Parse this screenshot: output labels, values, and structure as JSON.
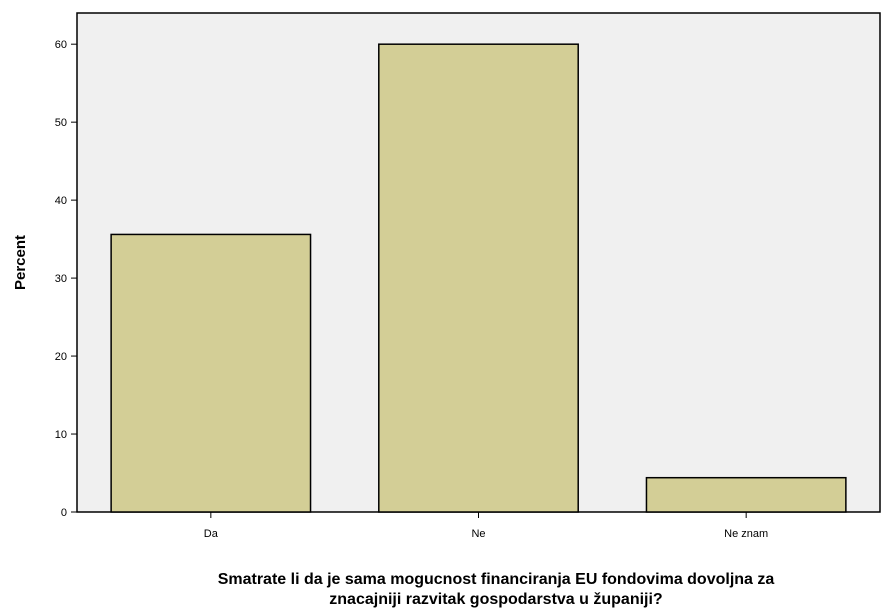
{
  "chart_data": {
    "type": "bar",
    "title": "",
    "categories": [
      "Da",
      "Ne",
      "Ne znam"
    ],
    "values": [
      35.6,
      60.0,
      4.4
    ],
    "xlabel_lines": [
      "Smatrate li da je sama mogucnost financiranja EU fondovima dovoljna za",
      "znacajniji razvitak gospodarstva u županiji?"
    ],
    "ylabel": "Percent",
    "ylim": [
      0,
      64
    ],
    "yticks": [
      0,
      10,
      20,
      30,
      40,
      50,
      60
    ],
    "grid": false,
    "legend": "none",
    "colors": {
      "plot_background": "#f0f0f0",
      "bar_fill": "#d3ce96",
      "bar_stroke": "#000000",
      "axis": "#000000"
    }
  }
}
